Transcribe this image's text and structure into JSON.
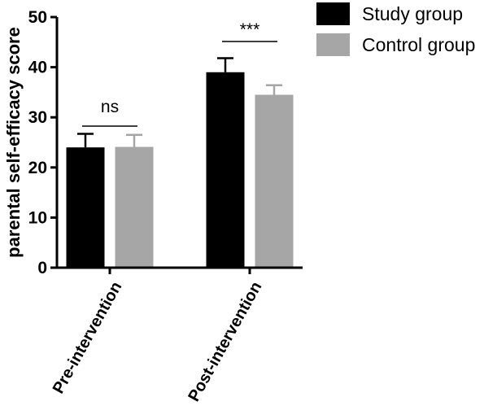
{
  "chart_data": {
    "type": "bar",
    "ylabel": "parental self-efficacy score",
    "ylim": [
      0,
      50
    ],
    "yticks": [
      0,
      10,
      20,
      30,
      40,
      50
    ],
    "categories": [
      "Pre-intervention",
      "Post-intervention"
    ],
    "series": [
      {
        "name": "Study group",
        "color": "#000000",
        "values": [
          24.0,
          39.0
        ],
        "errors": [
          2.7,
          2.8
        ]
      },
      {
        "name": "Control group",
        "color": "#a6a6a6",
        "values": [
          24.1,
          34.5
        ],
        "errors": [
          2.4,
          1.9
        ]
      }
    ],
    "significance": [
      "ns",
      "***"
    ],
    "legend_position": "top-right",
    "grid": false
  }
}
